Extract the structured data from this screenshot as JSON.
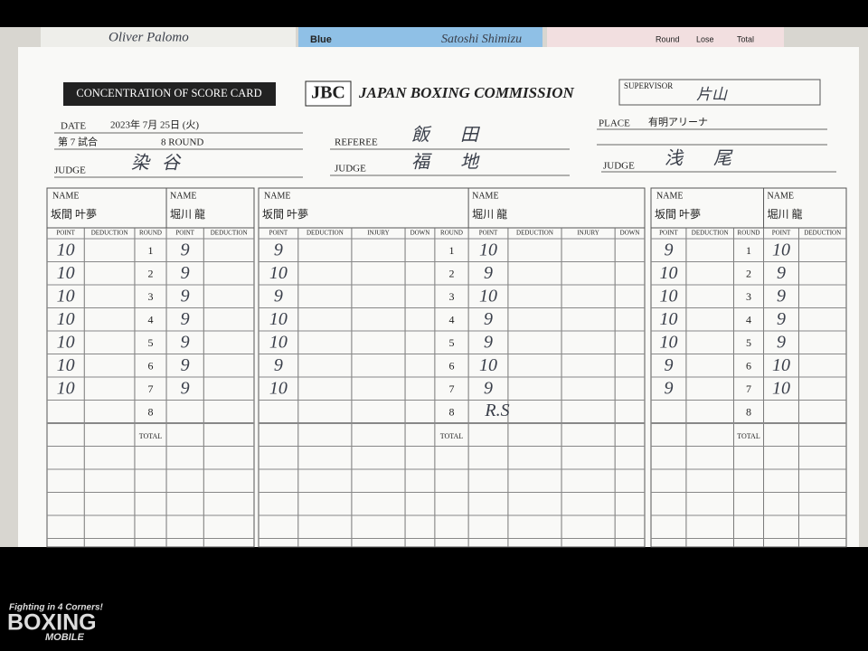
{
  "background_cards": {
    "left_name": "Oliver Palomo",
    "blue_label": "Blue",
    "blue_name": "Satoshi Shimizu",
    "right_headers": [
      "Round",
      "Lose",
      "Total"
    ]
  },
  "header": {
    "badge": "CONCENTRATION OF SCORE CARD",
    "logo": "JBC",
    "organization": "JAPAN BOXING COMMISSION",
    "supervisor_label": "SUPERVISOR",
    "supervisor": "片山",
    "date_label": "DATE",
    "date": "2023年 7月 25日 (火)",
    "bout": "第 7 試合",
    "rounds": "8 ROUND",
    "referee_label": "REFEREE",
    "referee": "飯田",
    "place_label": "PLACE",
    "place": "有明アリーナ"
  },
  "labels": {
    "judge": "JUDGE",
    "name": "NAME",
    "total": "TOTAL"
  },
  "judges": [
    {
      "judge": "染谷",
      "red_name": "坂間 叶夢",
      "blue_name": "堀川 龍",
      "red_columns": [
        "POINT",
        "DEDUCTION"
      ],
      "round_column": "ROUND",
      "blue_columns": [
        "POINT",
        "DEDUCTION"
      ],
      "rounds": [
        1,
        2,
        3,
        4,
        5,
        6,
        7,
        8
      ],
      "red_points": [
        10,
        10,
        10,
        10,
        10,
        10,
        10
      ],
      "blue_points": [
        9,
        9,
        9,
        9,
        9,
        9,
        9
      ]
    },
    {
      "judge": "福地",
      "red_name": "坂間 叶夢",
      "blue_name": "堀川 龍",
      "red_columns": [
        "POINT",
        "DEDUCTION",
        "INJURY",
        "DOWN"
      ],
      "round_column": "ROUND",
      "blue_columns": [
        "POINT",
        "DEDUCTION",
        "INJURY",
        "DOWN"
      ],
      "rounds": [
        1,
        2,
        3,
        4,
        5,
        6,
        7,
        8
      ],
      "red_points": [
        9,
        10,
        9,
        10,
        10,
        9,
        10
      ],
      "blue_points": [
        10,
        9,
        10,
        9,
        9,
        10,
        9
      ],
      "round_8_note": "R.S"
    },
    {
      "judge": "浅尾",
      "red_name": "坂間 叶夢",
      "blue_name": "堀川 龍",
      "red_columns": [
        "POINT",
        "DEDUCTION"
      ],
      "round_column": "ROUND",
      "blue_columns": [
        "POINT",
        "DEDUCTION"
      ],
      "rounds": [
        1,
        2,
        3,
        4,
        5,
        6,
        7,
        8
      ],
      "red_points": [
        9,
        10,
        10,
        10,
        10,
        9,
        9
      ],
      "blue_points": [
        10,
        9,
        9,
        9,
        9,
        10,
        10
      ]
    }
  ],
  "watermark": {
    "tagline": "Fighting in 4 Corners!",
    "brand": "BOXING",
    "sub": "MOBILE"
  }
}
